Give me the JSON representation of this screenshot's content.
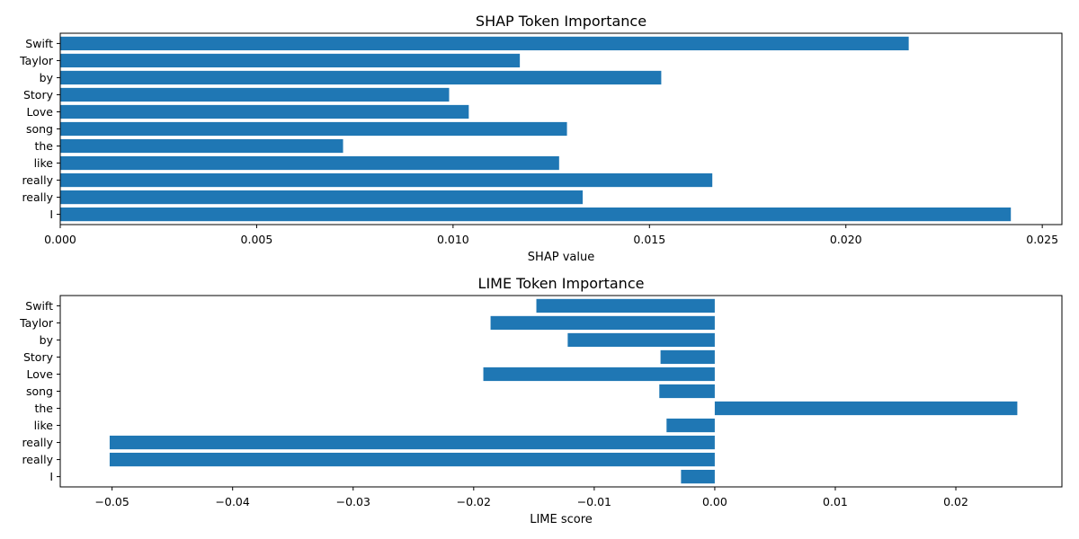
{
  "chart_data": [
    {
      "type": "bar",
      "orientation": "horizontal",
      "title": "SHAP Token Importance",
      "xlabel": "SHAP value",
      "ylabel": "",
      "color": "#1f77b4",
      "xlim": [
        0.0,
        0.0255
      ],
      "xticks": [
        0.0,
        0.005,
        0.01,
        0.015,
        0.02,
        0.025
      ],
      "xtick_labels": [
        "0.000",
        "0.005",
        "0.010",
        "0.015",
        "0.020",
        "0.025"
      ],
      "categories": [
        "Swift",
        "Taylor",
        "by",
        "Story",
        "Love",
        "song",
        "the",
        "like",
        "really",
        "really",
        "I"
      ],
      "values": [
        0.0216,
        0.0117,
        0.0153,
        0.0099,
        0.0104,
        0.0129,
        0.0072,
        0.0127,
        0.0166,
        0.0133,
        0.0242
      ],
      "grid": false
    },
    {
      "type": "bar",
      "orientation": "horizontal",
      "title": "LIME Token Importance",
      "xlabel": "LIME score",
      "ylabel": "",
      "color": "#1f77b4",
      "xlim": [
        -0.0543,
        0.0288
      ],
      "xticks": [
        -0.05,
        -0.04,
        -0.03,
        -0.02,
        -0.01,
        0.0,
        0.01,
        0.02
      ],
      "xtick_labels": [
        "−0.05",
        "−0.04",
        "−0.03",
        "−0.02",
        "−0.01",
        "0.00",
        "0.01",
        "0.02"
      ],
      "categories": [
        "Swift",
        "Taylor",
        "by",
        "Story",
        "Love",
        "song",
        "the",
        "like",
        "really",
        "really",
        "I"
      ],
      "values": [
        -0.0148,
        -0.0186,
        -0.0122,
        -0.0045,
        -0.0192,
        -0.0046,
        0.0251,
        -0.004,
        -0.0502,
        -0.0502,
        -0.0028
      ],
      "grid": false
    }
  ]
}
